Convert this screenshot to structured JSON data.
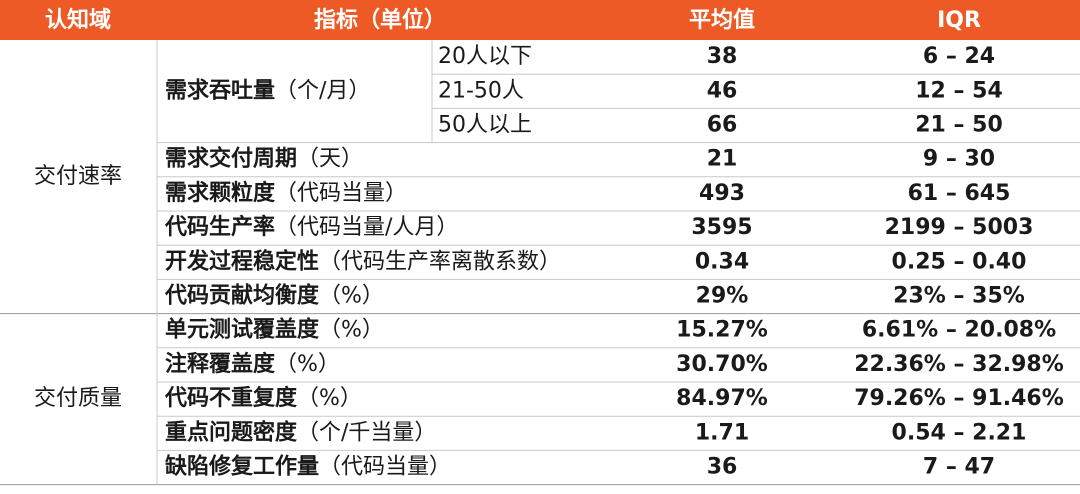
{
  "header": {
    "domain": "认知域",
    "metric": "指标（单位）",
    "mean": "平均值",
    "iqr": "IQR"
  },
  "groups": [
    {
      "domain": "交付速率",
      "rows": [
        {
          "metric": "需求吞吐量",
          "unit": "（个/月）",
          "breakdown": [
            {
              "label": "20人以下",
              "mean": "38",
              "iqr": "6 – 24"
            },
            {
              "label": "21-50人",
              "mean": "46",
              "iqr": "12 – 54"
            },
            {
              "label": "50人以上",
              "mean": "66",
              "iqr": "21 – 50"
            }
          ]
        },
        {
          "metric": "需求交付周期",
          "unit": "（天）",
          "mean": "21",
          "iqr": "9 – 30"
        },
        {
          "metric": "需求颗粒度",
          "unit": "（代码当量）",
          "mean": "493",
          "iqr": "61 – 645"
        },
        {
          "metric": "代码生产率",
          "unit": "（代码当量/人月）",
          "mean": "3595",
          "iqr": "2199 – 5003"
        },
        {
          "metric": "开发过程稳定性",
          "unit": "（代码生产率离散系数）",
          "mean": "0.34",
          "iqr": "0.25 – 0.40"
        },
        {
          "metric": "代码贡献均衡度",
          "unit": "（%）",
          "mean": "29%",
          "iqr": "23% – 35%"
        }
      ]
    },
    {
      "domain": "交付质量",
      "rows": [
        {
          "metric": "单元测试覆盖度",
          "unit": "（%）",
          "mean": "15.27%",
          "iqr": "6.61% – 20.08%"
        },
        {
          "metric": "注释覆盖度",
          "unit": "（%）",
          "mean": "30.70%",
          "iqr": "22.36% – 32.98%"
        },
        {
          "metric": "代码不重复度",
          "unit": "（%）",
          "mean": "84.97%",
          "iqr": "79.26% – 91.46%"
        },
        {
          "metric": "重点问题密度",
          "unit": "（个/千当量）",
          "mean": "1.71",
          "iqr": "0.54 – 2.21"
        },
        {
          "metric": "缺陷修复工作量",
          "unit": "（代码当量）",
          "mean": "36",
          "iqr": "7 – 47"
        }
      ]
    }
  ]
}
